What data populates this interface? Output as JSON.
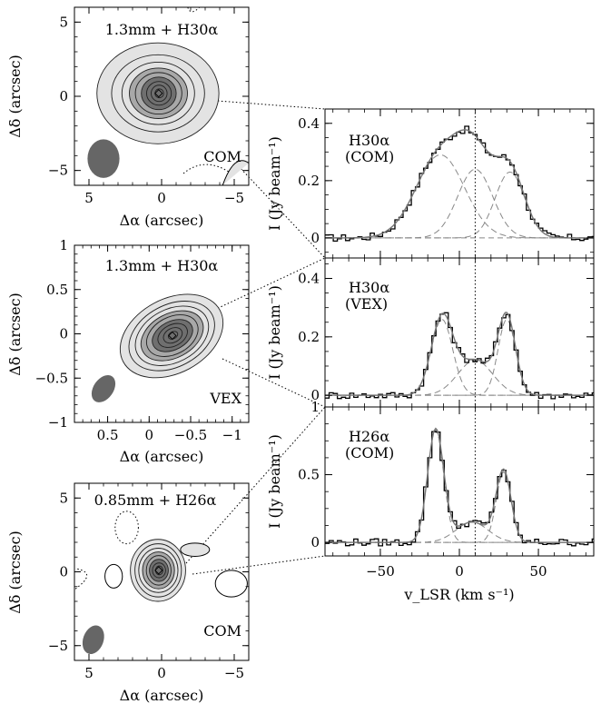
{
  "figure": {
    "colors": {
      "axis": "#000000",
      "contour": "#222222",
      "fill_light": "#e3e3e3",
      "fill_mid": "#a8a8a8",
      "fill_dark": "#6f6f6f",
      "beam": "#666666",
      "fit_total": "#777777",
      "fit_component": "#888888"
    }
  },
  "chart_data": [
    {
      "type": "contour-map",
      "panel": "map-1",
      "annotation": "1.3mm + H30α",
      "source_label": "COM",
      "xlabel": "Δα (arcsec)",
      "ylabel": "Δδ (arcsec)",
      "xlim": [
        6,
        -6
      ],
      "ylim": [
        -6,
        6
      ],
      "xticks": [
        5,
        0,
        -5
      ],
      "yticks": [
        5,
        0,
        -5
      ],
      "xtick_labels": [
        "5",
        "0",
        "−5"
      ],
      "ytick_labels": [
        "5",
        "0",
        "−5"
      ],
      "peak_offset": [
        0.2,
        0.2
      ],
      "contour_semi_axes": [
        [
          4.2,
          3.4
        ],
        [
          3.2,
          2.6
        ],
        [
          2.5,
          2.1
        ],
        [
          2.0,
          1.7
        ],
        [
          1.6,
          1.4
        ],
        [
          1.2,
          1.1
        ],
        [
          0.85,
          0.8
        ],
        [
          0.55,
          0.55
        ],
        [
          0.3,
          0.3
        ]
      ],
      "beam": {
        "x": 4.0,
        "y": -4.2,
        "major": 2.6,
        "minor": 2.2,
        "pa_deg": 0
      }
    },
    {
      "type": "contour-map",
      "panel": "map-2",
      "annotation": "1.3mm + H30α",
      "source_label": "VEX",
      "xlabel": "Δα (arcsec)",
      "ylabel": "Δδ (arcsec)",
      "xlim": [
        0.9,
        -1.2
      ],
      "ylim": [
        -1,
        1
      ],
      "xticks": [
        0.5,
        0,
        -0.5,
        -1
      ],
      "yticks": [
        1,
        0.5,
        0,
        -0.5,
        -1
      ],
      "xtick_labels": [
        "0.5",
        "0",
        "−0.5",
        "−1"
      ],
      "ytick_labels": [
        "1",
        "0.5",
        "0",
        "−0.5",
        "−1"
      ],
      "peak_offset": [
        -0.28,
        -0.02
      ],
      "contour_semi_axes": [
        [
          0.66,
          0.42
        ],
        [
          0.55,
          0.35
        ],
        [
          0.47,
          0.3
        ],
        [
          0.4,
          0.25
        ],
        [
          0.33,
          0.21
        ],
        [
          0.26,
          0.16
        ],
        [
          0.19,
          0.12
        ],
        [
          0.12,
          0.08
        ],
        [
          0.06,
          0.04
        ]
      ],
      "contour_rotation_deg": -28,
      "beam": {
        "x": 0.55,
        "y": -0.62,
        "major": 0.34,
        "minor": 0.24,
        "pa_deg": 35
      }
    },
    {
      "type": "contour-map",
      "panel": "map-3",
      "annotation": "0.85mm + H26α",
      "source_label": "COM",
      "xlabel": "Δα (arcsec)",
      "ylabel": "Δδ (arcsec)",
      "xlim": [
        6,
        -6
      ],
      "ylim": [
        -6,
        6
      ],
      "xticks": [
        5,
        0,
        -5
      ],
      "yticks": [
        5,
        0,
        -5
      ],
      "xtick_labels": [
        "5",
        "0",
        "−5"
      ],
      "ytick_labels": [
        "5",
        "0",
        "−5"
      ],
      "peak_offset": [
        0.2,
        0.1
      ],
      "contour_semi_axes": [
        [
          1.9,
          2.1
        ],
        [
          1.6,
          1.8
        ],
        [
          1.35,
          1.5
        ],
        [
          1.1,
          1.25
        ],
        [
          0.85,
          1.0
        ],
        [
          0.65,
          0.75
        ],
        [
          0.45,
          0.5
        ],
        [
          0.25,
          0.3
        ]
      ],
      "beam": {
        "x": 4.7,
        "y": -4.6,
        "major": 2.0,
        "minor": 1.4,
        "pa_deg": 20
      }
    },
    {
      "type": "line",
      "panel": "spectrum-1",
      "line_label": "H30α",
      "source_label": "(COM)",
      "ylabel": "I (Jy beam⁻¹)",
      "xlim": [
        -85,
        85
      ],
      "ylim": [
        -0.07,
        0.45
      ],
      "yticks": [
        0,
        0.2,
        0.4
      ],
      "ytick_labels": [
        "0",
        "0.2",
        "0.4"
      ],
      "vsys": 10,
      "fit_components": [
        {
          "center": -12,
          "amplitude": 0.29,
          "fwhm": 36
        },
        {
          "center": 10,
          "amplitude": 0.24,
          "fwhm": 26
        },
        {
          "center": 32,
          "amplitude": 0.23,
          "fwhm": 22
        }
      ]
    },
    {
      "type": "line",
      "panel": "spectrum-2",
      "line_label": "H30α",
      "source_label": "(VEX)",
      "ylabel": "I (Jy beam⁻¹)",
      "xlim": [
        -85,
        85
      ],
      "ylim": [
        -0.04,
        0.47
      ],
      "yticks": [
        0,
        0.2,
        0.4
      ],
      "ytick_labels": [
        "0",
        "0.2",
        "0.4"
      ],
      "vsys": 10,
      "fit_components": [
        {
          "center": -11,
          "amplitude": 0.26,
          "fwhm": 16
        },
        {
          "center": 10,
          "amplitude": 0.12,
          "fwhm": 26
        },
        {
          "center": 30,
          "amplitude": 0.26,
          "fwhm": 13
        }
      ]
    },
    {
      "type": "line",
      "panel": "spectrum-3",
      "line_label": "H26α",
      "source_label": "(COM)",
      "ylabel": "I (Jy beam⁻¹)",
      "xlabel": "v_LSR (km s⁻¹)",
      "xlim": [
        -85,
        85
      ],
      "ylim": [
        -0.1,
        1.0
      ],
      "yticks": [
        0,
        0.5,
        1
      ],
      "ytick_labels": [
        "0",
        "0.5",
        "1"
      ],
      "xticks": [
        -50,
        0,
        50
      ],
      "xtick_labels": [
        "−50",
        "0",
        "50"
      ],
      "vsys": 10,
      "fit_components": [
        {
          "center": -15,
          "amplitude": 0.83,
          "fwhm": 12
        },
        {
          "center": 8,
          "amplitude": 0.15,
          "fwhm": 24
        },
        {
          "center": 28,
          "amplitude": 0.52,
          "fwhm": 11
        }
      ]
    }
  ]
}
